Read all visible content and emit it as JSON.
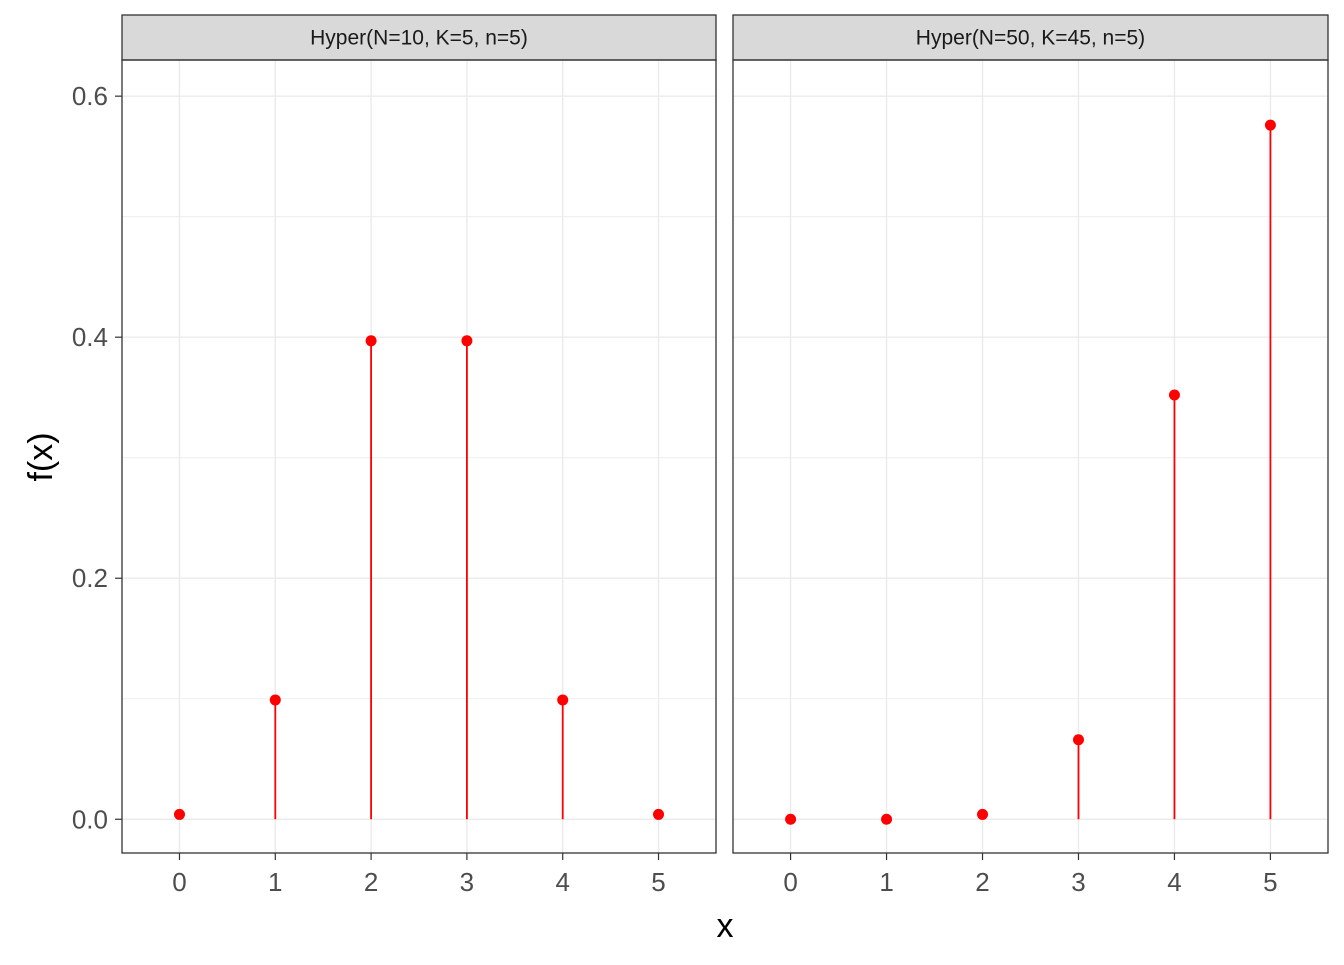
{
  "colors": {
    "point": "#ff0000",
    "segment": "#ff0000",
    "strip_fill": "#d9d9d9",
    "panel_border": "#333333",
    "grid": "#ebebeb"
  },
  "chart_data": {
    "type": "scatter",
    "geom": "lollipop",
    "xlabel": "x",
    "ylabel": "f(x)",
    "ylim": [
      -0.028,
      0.63
    ],
    "xlim": [
      -0.6,
      5.6
    ],
    "y_ticks": [
      0.0,
      0.2,
      0.4,
      0.6
    ],
    "y_tick_labels": [
      "0.0",
      "0.2",
      "0.4",
      "0.6"
    ],
    "x_ticks": [
      0,
      1,
      2,
      3,
      4,
      5
    ],
    "x_tick_labels": [
      "0",
      "1",
      "2",
      "3",
      "4",
      "5"
    ],
    "grid": true,
    "legend": "none",
    "panels": [
      {
        "strip": "Hyper(N=10, K=5, n=5)",
        "x": [
          0,
          1,
          2,
          3,
          4,
          5
        ],
        "y": [
          0.004,
          0.099,
          0.397,
          0.397,
          0.099,
          0.004
        ]
      },
      {
        "strip": "Hyper(N=50, K=45, n=5)",
        "x": [
          0,
          1,
          2,
          3,
          4,
          5
        ],
        "y": [
          0.0,
          0.0,
          0.004,
          0.066,
          0.352,
          0.576
        ]
      }
    ]
  }
}
